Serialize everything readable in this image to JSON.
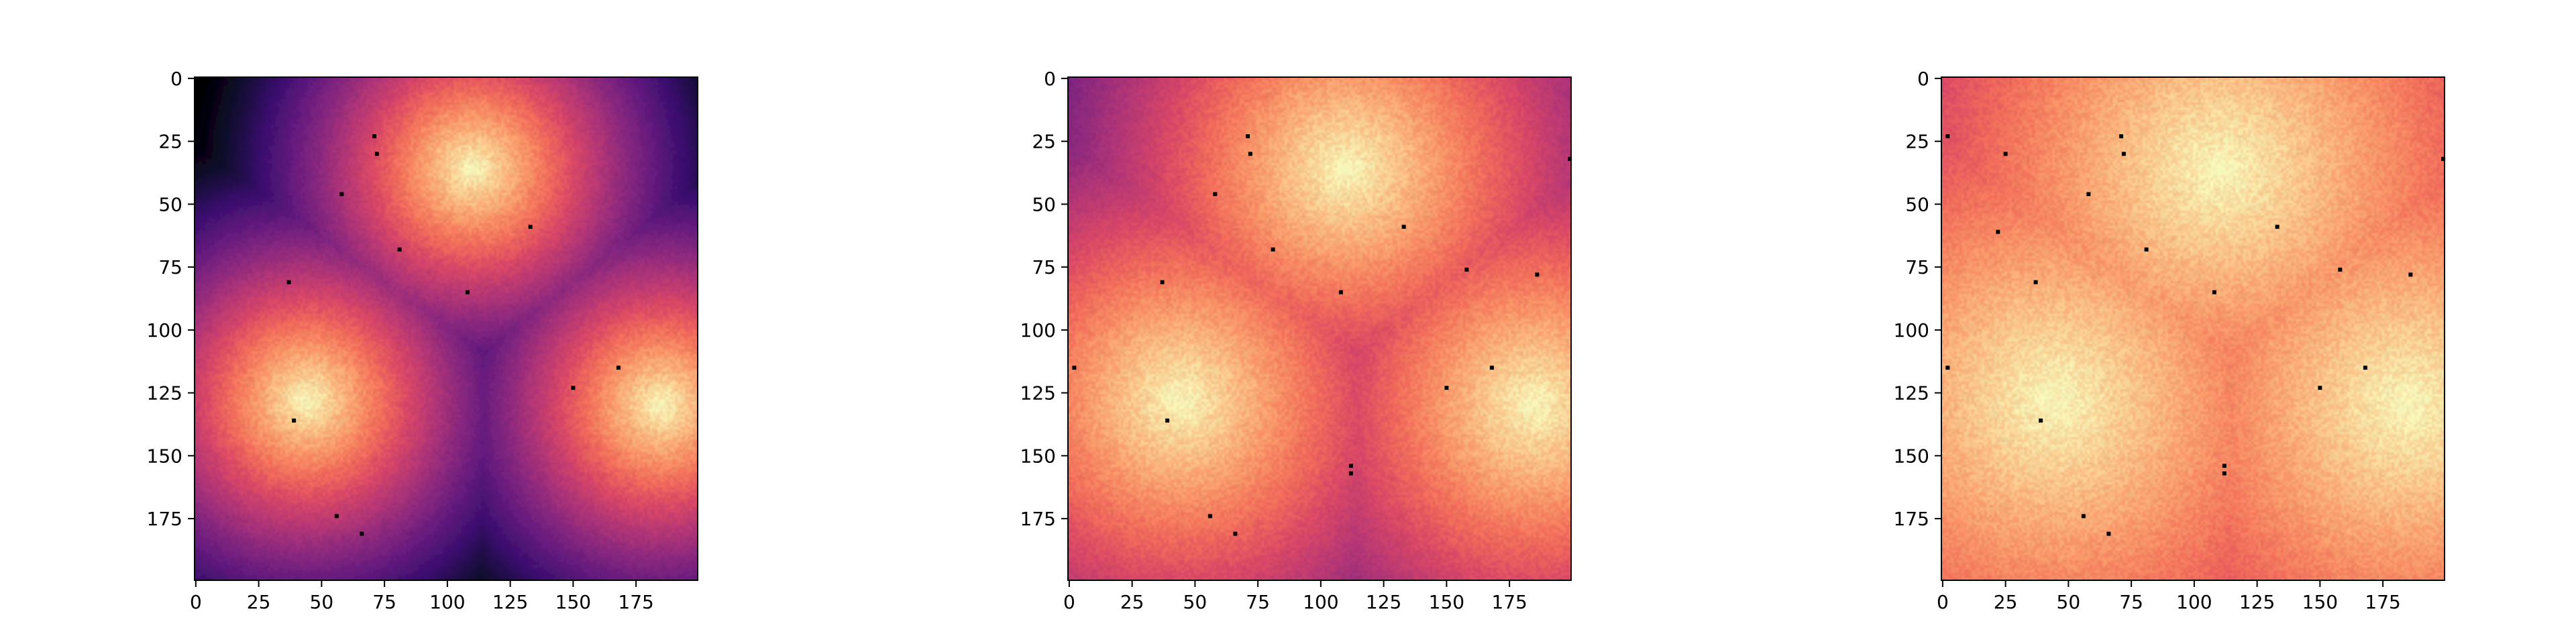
{
  "chart_data": [
    {
      "type": "heatmap",
      "colormap": "magma",
      "title": "",
      "xlabel": "",
      "ylabel": "",
      "xlim": [
        0,
        199
      ],
      "ylim": [
        199,
        0
      ],
      "x_ticks": [
        0,
        25,
        50,
        75,
        100,
        125,
        150,
        175
      ],
      "y_ticks": [
        0,
        25,
        50,
        75,
        100,
        125,
        150,
        175
      ],
      "sources": [
        {
          "x": 110,
          "y": 36,
          "peak": 1.0
        },
        {
          "x": 44,
          "y": 128,
          "peak": 1.0
        },
        {
          "x": 185,
          "y": 130,
          "peak": 1.0
        }
      ],
      "decay_radius": 112,
      "dots": [
        [
          71,
          23
        ],
        [
          72,
          30
        ],
        [
          58,
          46
        ],
        [
          81,
          68
        ],
        [
          133,
          59
        ],
        [
          37,
          81
        ],
        [
          108,
          85
        ],
        [
          150,
          123
        ],
        [
          168,
          115
        ],
        [
          39,
          136
        ],
        [
          56,
          174
        ],
        [
          66,
          181
        ]
      ]
    },
    {
      "type": "heatmap",
      "colormap": "magma",
      "title": "",
      "xlabel": "",
      "ylabel": "",
      "xlim": [
        0,
        199
      ],
      "ylim": [
        199,
        0
      ],
      "x_ticks": [
        0,
        25,
        50,
        75,
        100,
        125,
        150,
        175
      ],
      "y_ticks": [
        0,
        25,
        50,
        75,
        100,
        125,
        150,
        175
      ],
      "sources": [
        {
          "x": 110,
          "y": 36,
          "peak": 1.0
        },
        {
          "x": 44,
          "y": 128,
          "peak": 1.0
        },
        {
          "x": 185,
          "y": 130,
          "peak": 1.0
        }
      ],
      "decay_radius": 200,
      "dots": [
        [
          71,
          23
        ],
        [
          72,
          30
        ],
        [
          58,
          46
        ],
        [
          81,
          68
        ],
        [
          133,
          59
        ],
        [
          37,
          81
        ],
        [
          108,
          85
        ],
        [
          150,
          123
        ],
        [
          168,
          115
        ],
        [
          39,
          136
        ],
        [
          56,
          174
        ],
        [
          66,
          181
        ],
        [
          158,
          76
        ],
        [
          186,
          78
        ],
        [
          112,
          154
        ],
        [
          112,
          157
        ],
        [
          2,
          115
        ],
        [
          199,
          32
        ]
      ]
    },
    {
      "type": "heatmap",
      "colormap": "magma",
      "title": "",
      "xlabel": "",
      "ylabel": "",
      "xlim": [
        0,
        199
      ],
      "ylim": [
        199,
        0
      ],
      "x_ticks": [
        0,
        25,
        50,
        75,
        100,
        125,
        150,
        175
      ],
      "y_ticks": [
        0,
        25,
        50,
        75,
        100,
        125,
        150,
        175
      ],
      "sources": [
        {
          "x": 110,
          "y": 36,
          "peak": 1.0
        },
        {
          "x": 44,
          "y": 128,
          "peak": 1.0
        },
        {
          "x": 185,
          "y": 130,
          "peak": 1.0
        }
      ],
      "decay_radius": 330,
      "dots": [
        [
          71,
          23
        ],
        [
          72,
          30
        ],
        [
          58,
          46
        ],
        [
          81,
          68
        ],
        [
          133,
          59
        ],
        [
          37,
          81
        ],
        [
          108,
          85
        ],
        [
          150,
          123
        ],
        [
          168,
          115
        ],
        [
          39,
          136
        ],
        [
          56,
          174
        ],
        [
          66,
          181
        ],
        [
          158,
          76
        ],
        [
          186,
          78
        ],
        [
          112,
          154
        ],
        [
          112,
          157
        ],
        [
          2,
          115
        ],
        [
          2,
          23
        ],
        [
          199,
          32
        ],
        [
          25,
          30
        ],
        [
          22,
          61
        ]
      ]
    }
  ]
}
